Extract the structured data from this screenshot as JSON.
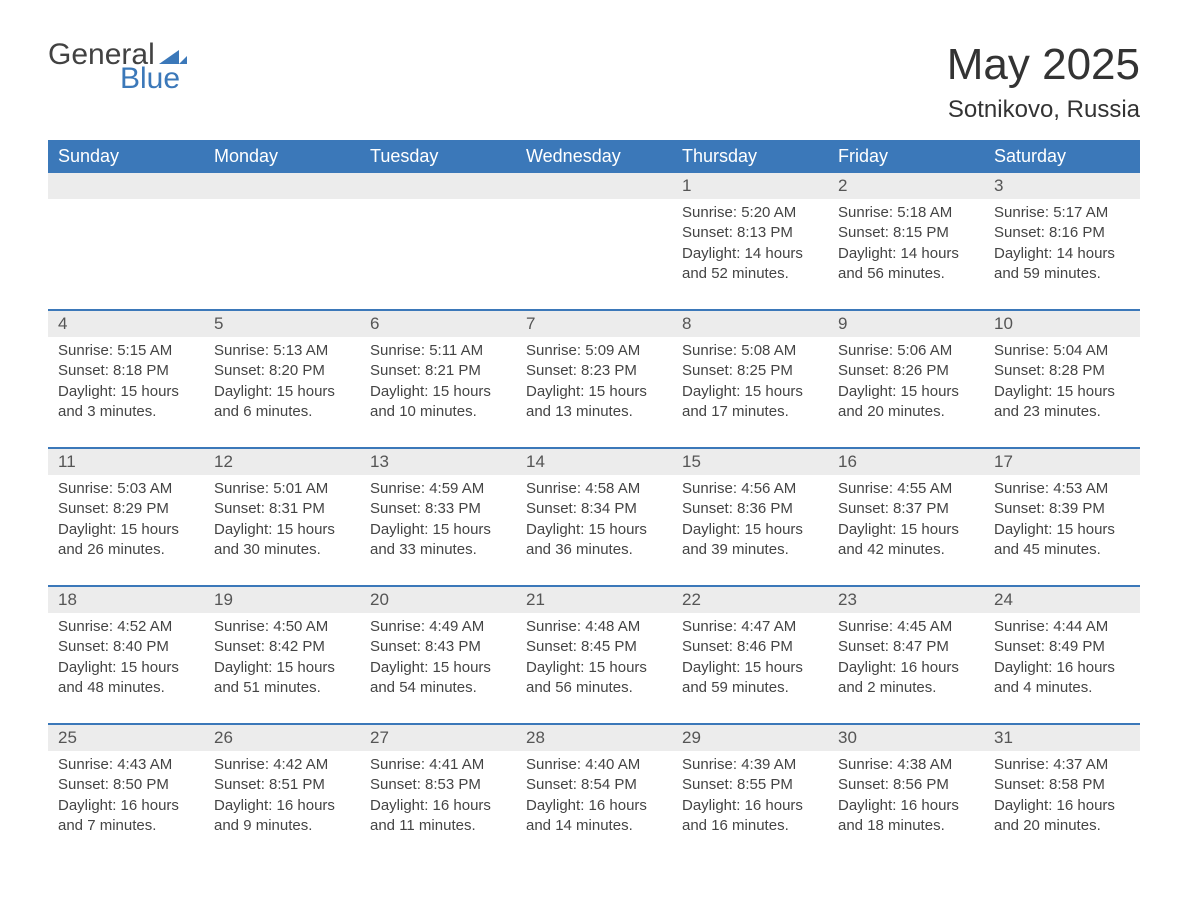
{
  "logo": {
    "general": "General",
    "blue": "Blue",
    "tri_color": "#3b78b9"
  },
  "header": {
    "month_title": "May 2025",
    "location": "Sotnikovo, Russia"
  },
  "colors": {
    "header_bg": "#3b78b9",
    "header_text": "#ffffff",
    "daynum_bg": "#ececec",
    "text": "#444444",
    "week_border": "#3b78b9"
  },
  "weekdays": [
    "Sunday",
    "Monday",
    "Tuesday",
    "Wednesday",
    "Thursday",
    "Friday",
    "Saturday"
  ],
  "weeks": [
    {
      "days": [
        {
          "num": "",
          "sunrise": "",
          "sunset": "",
          "daylight": ""
        },
        {
          "num": "",
          "sunrise": "",
          "sunset": "",
          "daylight": ""
        },
        {
          "num": "",
          "sunrise": "",
          "sunset": "",
          "daylight": ""
        },
        {
          "num": "",
          "sunrise": "",
          "sunset": "",
          "daylight": ""
        },
        {
          "num": "1",
          "sunrise": "Sunrise: 5:20 AM",
          "sunset": "Sunset: 8:13 PM",
          "daylight": "Daylight: 14 hours and 52 minutes."
        },
        {
          "num": "2",
          "sunrise": "Sunrise: 5:18 AM",
          "sunset": "Sunset: 8:15 PM",
          "daylight": "Daylight: 14 hours and 56 minutes."
        },
        {
          "num": "3",
          "sunrise": "Sunrise: 5:17 AM",
          "sunset": "Sunset: 8:16 PM",
          "daylight": "Daylight: 14 hours and 59 minutes."
        }
      ]
    },
    {
      "days": [
        {
          "num": "4",
          "sunrise": "Sunrise: 5:15 AM",
          "sunset": "Sunset: 8:18 PM",
          "daylight": "Daylight: 15 hours and 3 minutes."
        },
        {
          "num": "5",
          "sunrise": "Sunrise: 5:13 AM",
          "sunset": "Sunset: 8:20 PM",
          "daylight": "Daylight: 15 hours and 6 minutes."
        },
        {
          "num": "6",
          "sunrise": "Sunrise: 5:11 AM",
          "sunset": "Sunset: 8:21 PM",
          "daylight": "Daylight: 15 hours and 10 minutes."
        },
        {
          "num": "7",
          "sunrise": "Sunrise: 5:09 AM",
          "sunset": "Sunset: 8:23 PM",
          "daylight": "Daylight: 15 hours and 13 minutes."
        },
        {
          "num": "8",
          "sunrise": "Sunrise: 5:08 AM",
          "sunset": "Sunset: 8:25 PM",
          "daylight": "Daylight: 15 hours and 17 minutes."
        },
        {
          "num": "9",
          "sunrise": "Sunrise: 5:06 AM",
          "sunset": "Sunset: 8:26 PM",
          "daylight": "Daylight: 15 hours and 20 minutes."
        },
        {
          "num": "10",
          "sunrise": "Sunrise: 5:04 AM",
          "sunset": "Sunset: 8:28 PM",
          "daylight": "Daylight: 15 hours and 23 minutes."
        }
      ]
    },
    {
      "days": [
        {
          "num": "11",
          "sunrise": "Sunrise: 5:03 AM",
          "sunset": "Sunset: 8:29 PM",
          "daylight": "Daylight: 15 hours and 26 minutes."
        },
        {
          "num": "12",
          "sunrise": "Sunrise: 5:01 AM",
          "sunset": "Sunset: 8:31 PM",
          "daylight": "Daylight: 15 hours and 30 minutes."
        },
        {
          "num": "13",
          "sunrise": "Sunrise: 4:59 AM",
          "sunset": "Sunset: 8:33 PM",
          "daylight": "Daylight: 15 hours and 33 minutes."
        },
        {
          "num": "14",
          "sunrise": "Sunrise: 4:58 AM",
          "sunset": "Sunset: 8:34 PM",
          "daylight": "Daylight: 15 hours and 36 minutes."
        },
        {
          "num": "15",
          "sunrise": "Sunrise: 4:56 AM",
          "sunset": "Sunset: 8:36 PM",
          "daylight": "Daylight: 15 hours and 39 minutes."
        },
        {
          "num": "16",
          "sunrise": "Sunrise: 4:55 AM",
          "sunset": "Sunset: 8:37 PM",
          "daylight": "Daylight: 15 hours and 42 minutes."
        },
        {
          "num": "17",
          "sunrise": "Sunrise: 4:53 AM",
          "sunset": "Sunset: 8:39 PM",
          "daylight": "Daylight: 15 hours and 45 minutes."
        }
      ]
    },
    {
      "days": [
        {
          "num": "18",
          "sunrise": "Sunrise: 4:52 AM",
          "sunset": "Sunset: 8:40 PM",
          "daylight": "Daylight: 15 hours and 48 minutes."
        },
        {
          "num": "19",
          "sunrise": "Sunrise: 4:50 AM",
          "sunset": "Sunset: 8:42 PM",
          "daylight": "Daylight: 15 hours and 51 minutes."
        },
        {
          "num": "20",
          "sunrise": "Sunrise: 4:49 AM",
          "sunset": "Sunset: 8:43 PM",
          "daylight": "Daylight: 15 hours and 54 minutes."
        },
        {
          "num": "21",
          "sunrise": "Sunrise: 4:48 AM",
          "sunset": "Sunset: 8:45 PM",
          "daylight": "Daylight: 15 hours and 56 minutes."
        },
        {
          "num": "22",
          "sunrise": "Sunrise: 4:47 AM",
          "sunset": "Sunset: 8:46 PM",
          "daylight": "Daylight: 15 hours and 59 minutes."
        },
        {
          "num": "23",
          "sunrise": "Sunrise: 4:45 AM",
          "sunset": "Sunset: 8:47 PM",
          "daylight": "Daylight: 16 hours and 2 minutes."
        },
        {
          "num": "24",
          "sunrise": "Sunrise: 4:44 AM",
          "sunset": "Sunset: 8:49 PM",
          "daylight": "Daylight: 16 hours and 4 minutes."
        }
      ]
    },
    {
      "days": [
        {
          "num": "25",
          "sunrise": "Sunrise: 4:43 AM",
          "sunset": "Sunset: 8:50 PM",
          "daylight": "Daylight: 16 hours and 7 minutes."
        },
        {
          "num": "26",
          "sunrise": "Sunrise: 4:42 AM",
          "sunset": "Sunset: 8:51 PM",
          "daylight": "Daylight: 16 hours and 9 minutes."
        },
        {
          "num": "27",
          "sunrise": "Sunrise: 4:41 AM",
          "sunset": "Sunset: 8:53 PM",
          "daylight": "Daylight: 16 hours and 11 minutes."
        },
        {
          "num": "28",
          "sunrise": "Sunrise: 4:40 AM",
          "sunset": "Sunset: 8:54 PM",
          "daylight": "Daylight: 16 hours and 14 minutes."
        },
        {
          "num": "29",
          "sunrise": "Sunrise: 4:39 AM",
          "sunset": "Sunset: 8:55 PM",
          "daylight": "Daylight: 16 hours and 16 minutes."
        },
        {
          "num": "30",
          "sunrise": "Sunrise: 4:38 AM",
          "sunset": "Sunset: 8:56 PM",
          "daylight": "Daylight: 16 hours and 18 minutes."
        },
        {
          "num": "31",
          "sunrise": "Sunrise: 4:37 AM",
          "sunset": "Sunset: 8:58 PM",
          "daylight": "Daylight: 16 hours and 20 minutes."
        }
      ]
    }
  ]
}
